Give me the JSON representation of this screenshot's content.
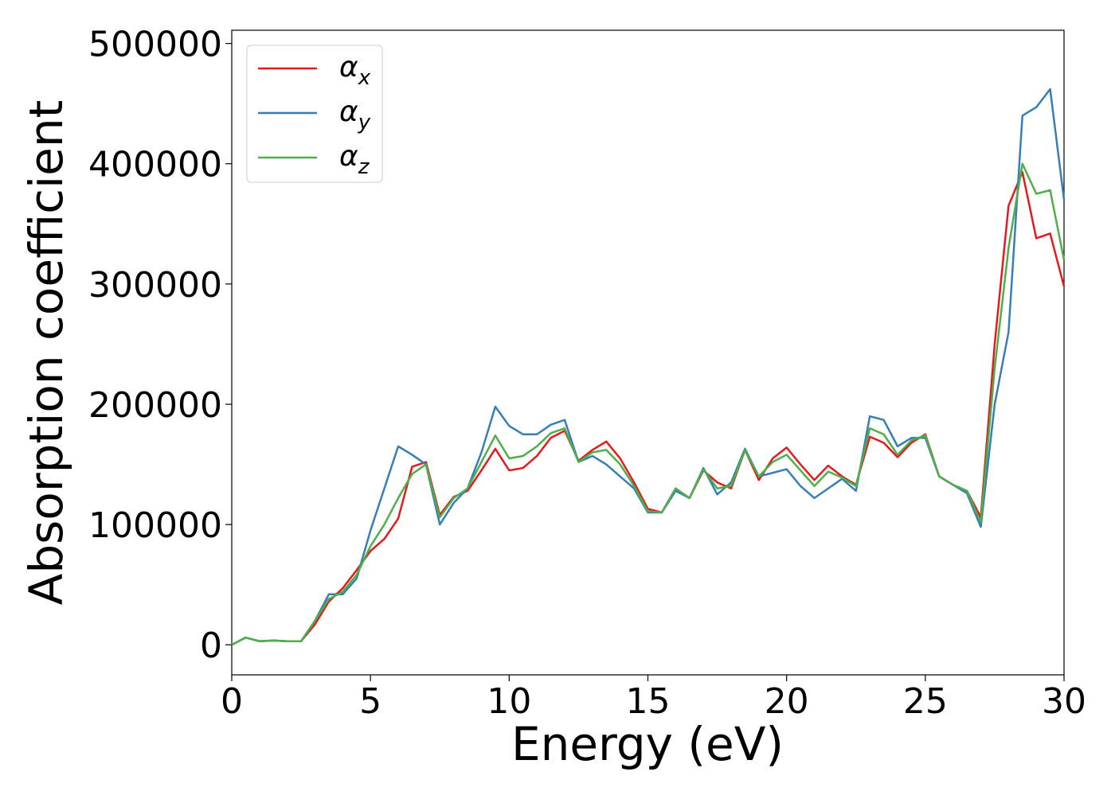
{
  "chart_data": {
    "type": "line",
    "xlabel": "Energy (eV)",
    "ylabel": "Absorption coefficient",
    "x": [
      0,
      0.5,
      1,
      1.5,
      2,
      2.5,
      3,
      3.5,
      4,
      4.5,
      5,
      5.5,
      6,
      6.5,
      7,
      7.5,
      8,
      8.5,
      9,
      9.5,
      10,
      10.5,
      11,
      11.5,
      12,
      12.5,
      13,
      13.5,
      14,
      14.5,
      15,
      15.5,
      16,
      16.5,
      17,
      17.5,
      18,
      18.5,
      19,
      19.5,
      20,
      20.5,
      21,
      21.5,
      22,
      22.5,
      23,
      23.5,
      24,
      24.5,
      25,
      25.5,
      26,
      26.5,
      27,
      27.5,
      28,
      28.5,
      29,
      29.5,
      30
    ],
    "series": [
      {
        "name": "αx",
        "color": "#e41a1c",
        "values": [
          0,
          6000,
          3000,
          3500,
          3000,
          3000,
          17000,
          36000,
          47000,
          62000,
          78000,
          88000,
          105000,
          148000,
          152000,
          108000,
          123000,
          128000,
          145000,
          163000,
          145000,
          147000,
          157000,
          172000,
          178000,
          153000,
          162000,
          169000,
          155000,
          135000,
          113000,
          110000,
          130000,
          122000,
          145000,
          135000,
          130000,
          162000,
          137000,
          155000,
          164000,
          150000,
          137000,
          149000,
          140000,
          133000,
          173000,
          168000,
          156000,
          168000,
          175000,
          140000,
          133000,
          128000,
          106000,
          250000,
          365000,
          393000,
          338000,
          342000,
          298000
        ]
      },
      {
        "name": "αy",
        "color": "#377eb8",
        "values": [
          0,
          6000,
          3000,
          3500,
          3000,
          3000,
          20000,
          42000,
          42000,
          55000,
          95000,
          130000,
          165000,
          158000,
          150000,
          100000,
          118000,
          130000,
          160000,
          198000,
          182000,
          175000,
          175000,
          183000,
          187000,
          152000,
          157000,
          150000,
          140000,
          130000,
          110000,
          110000,
          128000,
          122000,
          147000,
          125000,
          135000,
          163000,
          140000,
          143000,
          146000,
          132000,
          122000,
          130000,
          138000,
          128000,
          190000,
          187000,
          165000,
          172000,
          172000,
          140000,
          133000,
          126000,
          98000,
          200000,
          260000,
          440000,
          447000,
          462000,
          370000
        ]
      },
      {
        "name": "αz",
        "color": "#4daf4a",
        "values": [
          0,
          6000,
          3000,
          3500,
          3000,
          3000,
          20000,
          38000,
          44000,
          58000,
          82000,
          100000,
          122000,
          142000,
          150000,
          106000,
          122000,
          130000,
          152000,
          174000,
          155000,
          157000,
          165000,
          176000,
          180000,
          152000,
          160000,
          162000,
          150000,
          132000,
          111000,
          110000,
          130000,
          122000,
          146000,
          130000,
          132000,
          162000,
          140000,
          152000,
          158000,
          145000,
          132000,
          144000,
          139000,
          132000,
          180000,
          175000,
          158000,
          170000,
          174000,
          140000,
          133000,
          128000,
          102000,
          230000,
          330000,
          400000,
          375000,
          378000,
          320000
        ]
      }
    ],
    "xlim": [
      0,
      30
    ],
    "xticks": [
      0,
      5,
      10,
      15,
      20,
      25,
      30
    ],
    "ylim": [
      -25000,
      511000
    ],
    "yticks": [
      0,
      100000,
      200000,
      300000,
      400000,
      500000
    ],
    "grid": false,
    "legend": "upper left"
  }
}
